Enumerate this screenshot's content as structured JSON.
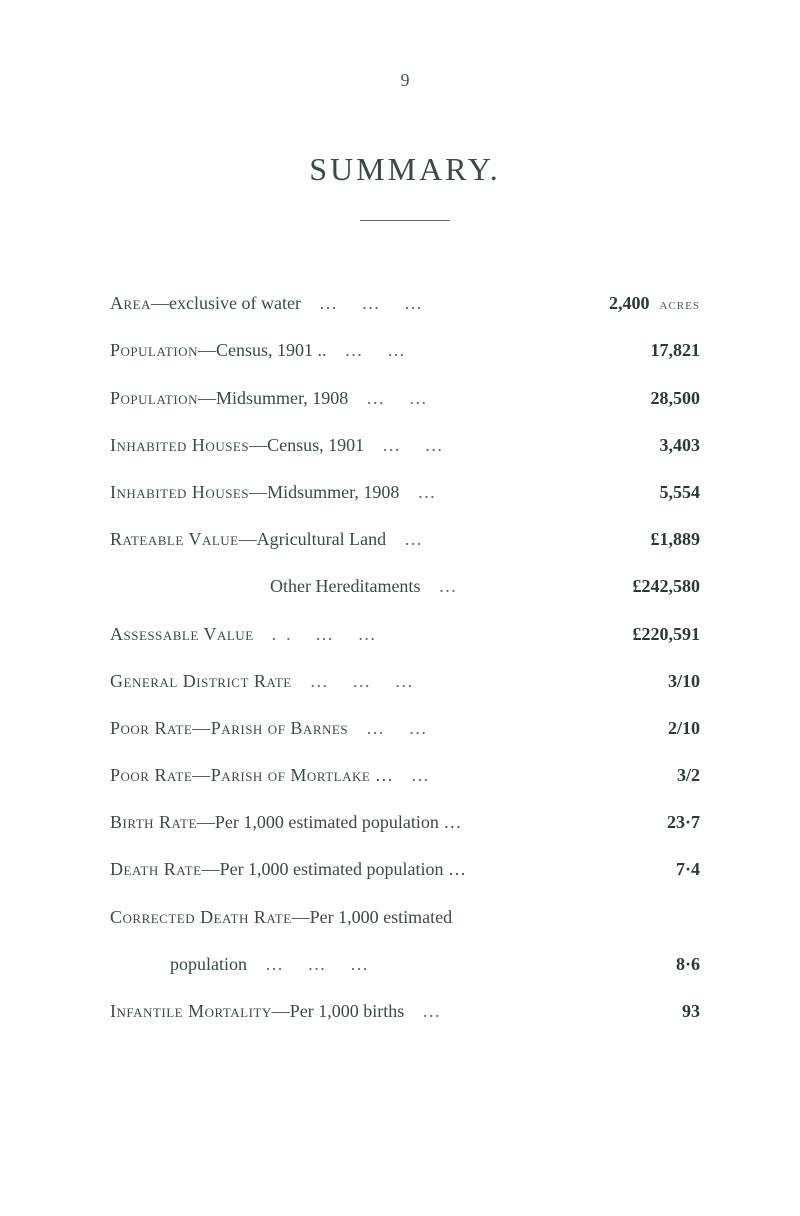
{
  "page_number": "9",
  "title": "SUMMARY.",
  "unit_label": "acres",
  "items": [
    {
      "label_sc": "Area",
      "label_rest": "—exclusive of water",
      "dots": "…   …   …",
      "value": "2,400",
      "has_unit": true
    },
    {
      "label_sc": "Population",
      "label_rest": "—Census, 1901   ..",
      "dots": "…   …",
      "value": "17,821"
    },
    {
      "label_sc": "Population",
      "label_rest": "—Midsummer, 1908",
      "dots": "…   …",
      "value": "28,500"
    },
    {
      "label_sc": "Inhabited Houses",
      "label_rest": "—Census, 1901",
      "dots": "…   …",
      "value": "3,403"
    },
    {
      "label_sc": "Inhabited Houses",
      "label_rest": "—Midsummer, 1908",
      "dots": "…",
      "value": "5,554"
    },
    {
      "label_sc": "Rateable Value",
      "label_rest": "—Agricultural Land",
      "dots": "…",
      "value": "£1,889"
    },
    {
      "label_rest": "Other Hereditaments",
      "indent": true,
      "dots": "…",
      "value": "£242,580"
    },
    {
      "label_sc": "Assessable Value",
      "label_rest": "",
      "dots": "..   …   …",
      "value": "£220,591"
    },
    {
      "label_sc": "General District Rate",
      "label_rest": "",
      "dots": "…   …   …",
      "value": "3/10"
    },
    {
      "label_sc": "Poor Rate—Parish of Barnes",
      "label_rest": "",
      "dots": "…   …",
      "value": "2/10"
    },
    {
      "label_sc": "Poor Rate—Parish of Mortlake",
      "label_rest": "  …",
      "dots": "…",
      "value": "3/2"
    },
    {
      "label_sc": "Birth Rate",
      "label_rest": "—Per 1,000 estimated population  …",
      "dots": "",
      "value": "23·7"
    },
    {
      "label_sc": "Death Rate",
      "label_rest": "—Per 1,000 estimated population  …",
      "dots": "",
      "value": "7·4"
    },
    {
      "multi": true,
      "line1_sc": "Corrected Death Rate",
      "line1_rest": "—Per 1,000 estimated",
      "line2": "population",
      "line2_dots": "…   …   …",
      "value": "8·6"
    },
    {
      "label_sc": "Infantile Mortality",
      "label_rest": "—Per 1,000 births",
      "dots": "…",
      "value": "93"
    }
  ],
  "colors": {
    "background": "#ffffff",
    "text": "#3a4a45",
    "value": "#2a3a35",
    "faint": "#5a6a65"
  },
  "fontsize": {
    "body": 18,
    "title": 32,
    "pageno": 18
  }
}
